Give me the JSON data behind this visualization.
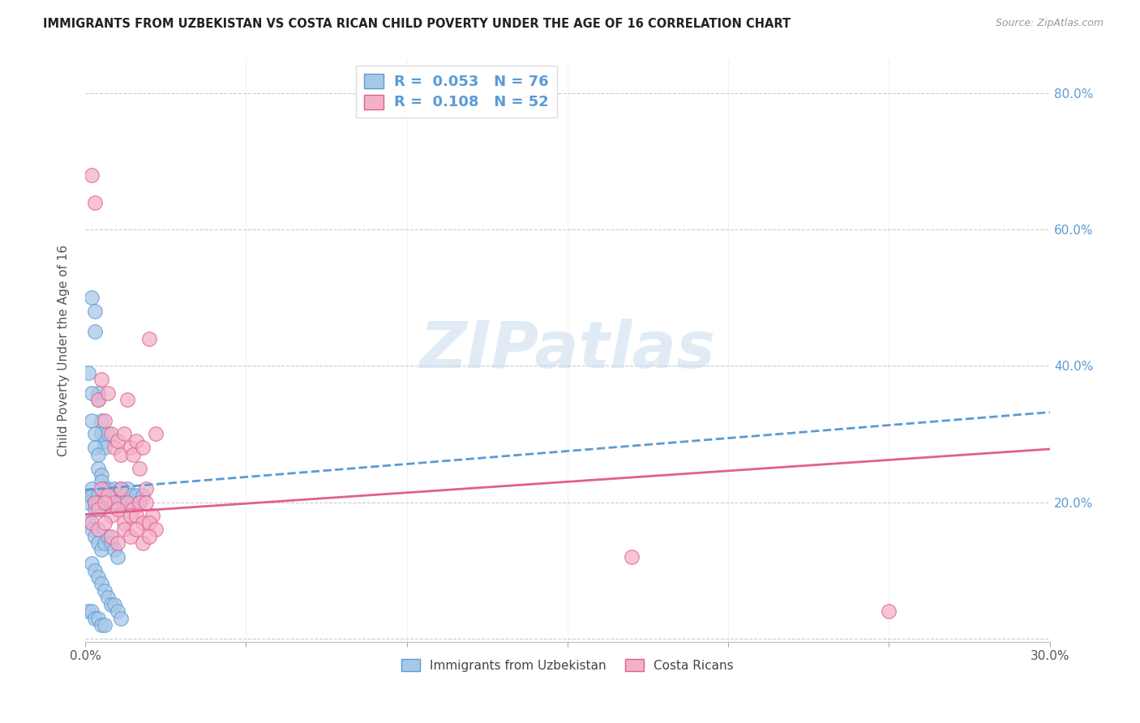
{
  "title": "IMMIGRANTS FROM UZBEKISTAN VS COSTA RICAN CHILD POVERTY UNDER THE AGE OF 16 CORRELATION CHART",
  "source": "Source: ZipAtlas.com",
  "ylabel": "Child Poverty Under the Age of 16",
  "xlim": [
    0.0,
    0.3
  ],
  "ylim": [
    -0.005,
    0.85
  ],
  "xticks": [
    0.0,
    0.05,
    0.1,
    0.15,
    0.2,
    0.25,
    0.3
  ],
  "xticklabels": [
    "0.0%",
    "",
    "",
    "",
    "",
    "",
    "30.0%"
  ],
  "yticks": [
    0.0,
    0.2,
    0.4,
    0.6,
    0.8
  ],
  "yticklabels_right": [
    "",
    "20.0%",
    "40.0%",
    "60.0%",
    "80.0%"
  ],
  "r1": "0.053",
  "n1": "76",
  "r2": "0.108",
  "n2": "52",
  "legend_label1": "Immigrants from Uzbekistan",
  "legend_label2": "Costa Ricans",
  "blue_face": "#a8c8e8",
  "blue_edge": "#5b9bd5",
  "pink_face": "#f4b0c8",
  "pink_edge": "#e06090",
  "trend_blue": "#5b9bd5",
  "trend_pink": "#e06090",
  "blue_scatter_x": [
    0.002,
    0.003,
    0.003,
    0.004,
    0.004,
    0.005,
    0.005,
    0.006,
    0.006,
    0.007,
    0.001,
    0.002,
    0.002,
    0.003,
    0.003,
    0.004,
    0.004,
    0.005,
    0.005,
    0.006,
    0.001,
    0.001,
    0.002,
    0.002,
    0.003,
    0.003,
    0.004,
    0.004,
    0.005,
    0.005,
    0.006,
    0.006,
    0.007,
    0.007,
    0.008,
    0.008,
    0.009,
    0.009,
    0.01,
    0.01,
    0.011,
    0.011,
    0.012,
    0.012,
    0.013,
    0.014,
    0.015,
    0.016,
    0.017,
    0.018,
    0.001,
    0.002,
    0.003,
    0.004,
    0.005,
    0.006,
    0.007,
    0.008,
    0.009,
    0.01,
    0.002,
    0.003,
    0.004,
    0.005,
    0.006,
    0.007,
    0.008,
    0.009,
    0.01,
    0.011,
    0.001,
    0.002,
    0.003,
    0.004,
    0.005,
    0.006
  ],
  "blue_scatter_y": [
    0.5,
    0.48,
    0.45,
    0.36,
    0.35,
    0.32,
    0.3,
    0.29,
    0.28,
    0.3,
    0.39,
    0.36,
    0.32,
    0.3,
    0.28,
    0.27,
    0.25,
    0.24,
    0.23,
    0.22,
    0.21,
    0.2,
    0.22,
    0.21,
    0.2,
    0.19,
    0.21,
    0.2,
    0.2,
    0.19,
    0.21,
    0.2,
    0.22,
    0.2,
    0.21,
    0.2,
    0.22,
    0.2,
    0.21,
    0.2,
    0.22,
    0.2,
    0.21,
    0.2,
    0.22,
    0.21,
    0.2,
    0.21,
    0.2,
    0.21,
    0.17,
    0.16,
    0.15,
    0.14,
    0.13,
    0.14,
    0.15,
    0.14,
    0.13,
    0.12,
    0.11,
    0.1,
    0.09,
    0.08,
    0.07,
    0.06,
    0.05,
    0.05,
    0.04,
    0.03,
    0.04,
    0.04,
    0.03,
    0.03,
    0.02,
    0.02
  ],
  "pink_scatter_x": [
    0.002,
    0.003,
    0.004,
    0.005,
    0.006,
    0.007,
    0.008,
    0.009,
    0.01,
    0.011,
    0.012,
    0.013,
    0.014,
    0.015,
    0.016,
    0.017,
    0.018,
    0.019,
    0.02,
    0.022,
    0.003,
    0.005,
    0.007,
    0.009,
    0.011,
    0.013,
    0.015,
    0.017,
    0.019,
    0.021,
    0.004,
    0.006,
    0.008,
    0.01,
    0.012,
    0.014,
    0.016,
    0.018,
    0.02,
    0.022,
    0.002,
    0.004,
    0.006,
    0.008,
    0.01,
    0.012,
    0.014,
    0.016,
    0.018,
    0.02,
    0.17,
    0.25
  ],
  "pink_scatter_y": [
    0.68,
    0.64,
    0.35,
    0.38,
    0.32,
    0.36,
    0.3,
    0.28,
    0.29,
    0.27,
    0.3,
    0.35,
    0.28,
    0.27,
    0.29,
    0.25,
    0.28,
    0.22,
    0.44,
    0.3,
    0.2,
    0.22,
    0.21,
    0.2,
    0.22,
    0.2,
    0.19,
    0.2,
    0.2,
    0.18,
    0.19,
    0.2,
    0.18,
    0.19,
    0.17,
    0.18,
    0.18,
    0.17,
    0.17,
    0.16,
    0.17,
    0.16,
    0.17,
    0.15,
    0.14,
    0.16,
    0.15,
    0.16,
    0.14,
    0.15,
    0.12,
    0.04
  ],
  "blue_trend_x": [
    0.0,
    0.3
  ],
  "blue_trend_y": [
    0.218,
    0.332
  ],
  "pink_trend_x": [
    0.0,
    0.3
  ],
  "pink_trend_y": [
    0.182,
    0.278
  ],
  "watermark": "ZIPatlas",
  "figsize": [
    14.06,
    8.92
  ],
  "dpi": 100
}
